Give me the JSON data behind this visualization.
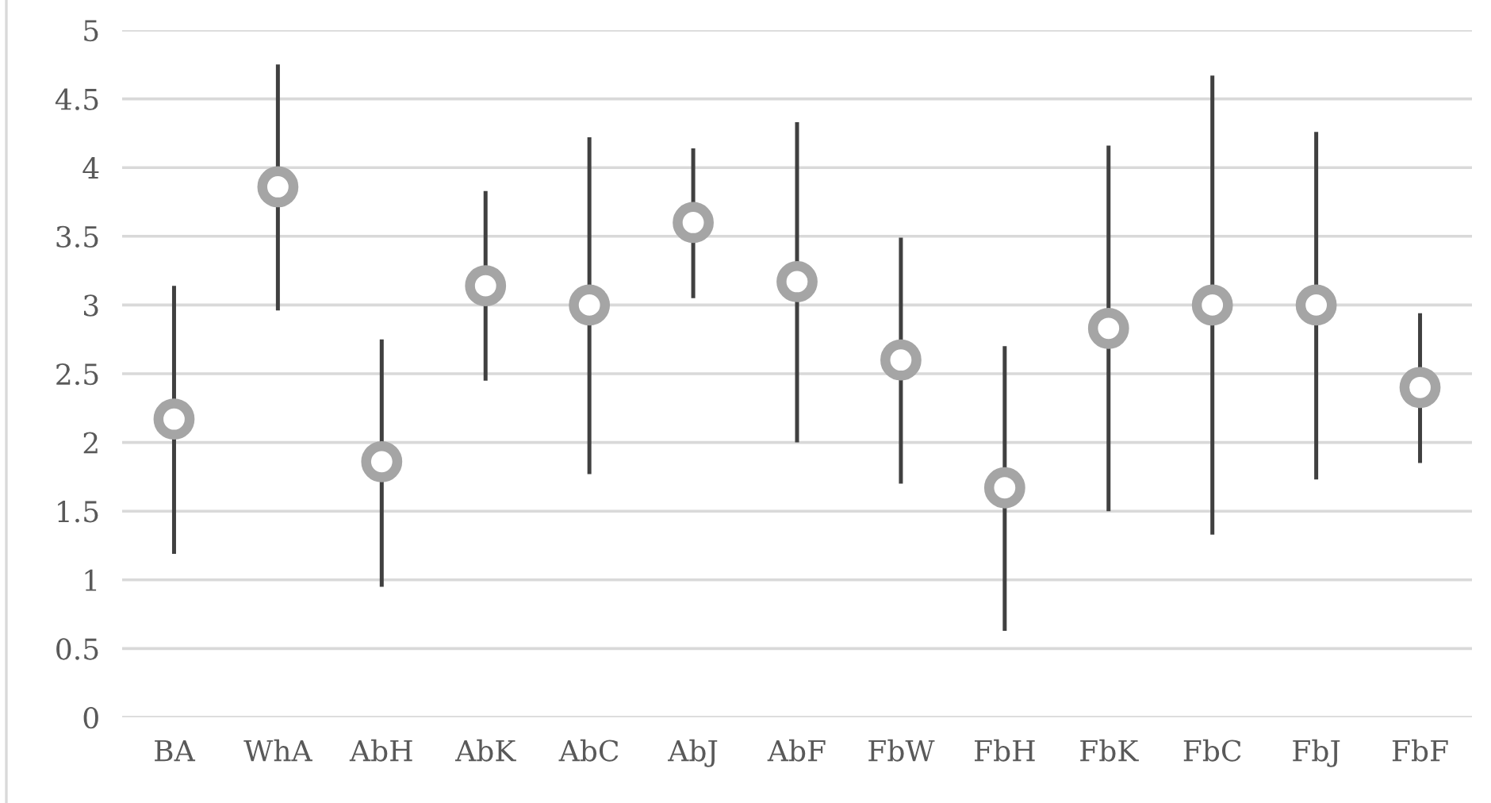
{
  "chart_data": {
    "type": "scatter",
    "categories": [
      "BA",
      "WhA",
      "AbH",
      "AbK",
      "AbC",
      "AbJ",
      "AbF",
      "FbW",
      "FbH",
      "FbK",
      "FbC",
      "FbJ",
      "FbF"
    ],
    "series": [
      {
        "color": "#a5a5a5",
        "values": [
          2.17,
          3.86,
          1.86,
          3.14,
          3.0,
          3.6,
          3.17,
          2.6,
          1.67,
          2.83,
          3.0,
          3.0,
          2.4
        ],
        "errors": [
          [
            1.19,
            3.14
          ],
          [
            2.96,
            4.75
          ],
          [
            0.95,
            2.75
          ],
          [
            2.45,
            3.83
          ],
          [
            1.77,
            4.22
          ],
          [
            3.05,
            4.14
          ],
          [
            2.0,
            4.33
          ],
          [
            1.7,
            3.49
          ],
          [
            0.63,
            2.7
          ],
          [
            1.5,
            4.16
          ],
          [
            1.33,
            4.67
          ],
          [
            1.73,
            4.26
          ],
          [
            1.85,
            2.94
          ]
        ]
      }
    ],
    "ylim": [
      0,
      5
    ],
    "yticks": [
      0,
      {
        "value": 0.5,
        "label": "0.5"
      },
      1,
      {
        "value": 1.5,
        "label": "1.5"
      },
      2,
      {
        "value": 2.5,
        "label": "2.5"
      },
      3,
      {
        "value": 3.5,
        "label": "3.5"
      },
      4,
      {
        "value": 4.5,
        "label": "4.5"
      },
      5
    ],
    "grid": "y",
    "marker": "circle"
  }
}
